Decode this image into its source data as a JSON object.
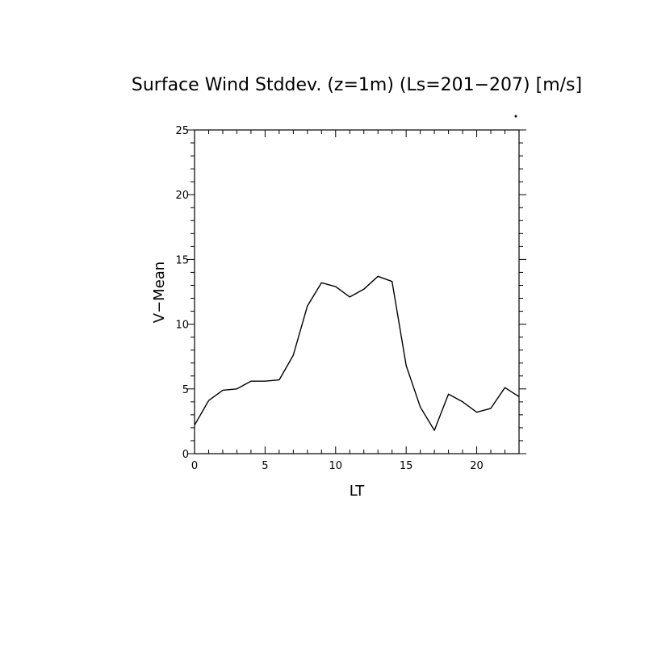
{
  "chart_data": {
    "type": "line",
    "title": "Surface Wind Stddev. (z=1m) (Ls=201−207) [m/s]",
    "xlabel": "LT",
    "ylabel": "V−Mean",
    "xlim": [
      0,
      23
    ],
    "ylim": [
      0,
      25
    ],
    "x_major_ticks": [
      0,
      5,
      10,
      15,
      20
    ],
    "x_tick_labels": [
      "0",
      "5",
      "10",
      "15",
      "20"
    ],
    "x_minor_step": 1,
    "y_major_ticks": [
      0,
      5,
      10,
      15,
      20,
      25
    ],
    "y_tick_labels": [
      "0",
      "5",
      "10",
      "15",
      "20",
      "25"
    ],
    "y_minor_step": 1,
    "grid": false,
    "series": [
      {
        "x": [
          0,
          1,
          2,
          3,
          4,
          5,
          6,
          7,
          8,
          9,
          10,
          11,
          12,
          13,
          14,
          15,
          16,
          17,
          18,
          19,
          20,
          21,
          22,
          23
        ],
        "values": [
          2.2,
          4.1,
          4.9,
          5.0,
          5.6,
          5.6,
          5.7,
          7.6,
          11.4,
          13.2,
          12.9,
          12.1,
          12.7,
          13.7,
          13.3,
          6.8,
          3.6,
          1.8,
          4.6,
          4.0,
          3.2,
          3.5,
          5.1,
          4.4
        ]
      }
    ]
  }
}
